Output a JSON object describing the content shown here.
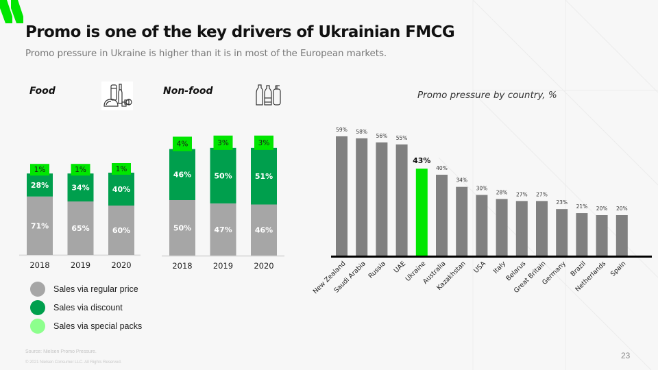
{
  "slide": {
    "title": "Promo is one of the key drivers of Ukrainian FMCG",
    "subtitle": "Promo pressure in Ukraine is higher than it is in most of the European markets.",
    "source": "Source: Nielsen Promo Pressure.",
    "copyright": "© 2021 Nielsen Consumer LLC. All Rights Reserved.",
    "page_number": "23",
    "colors": {
      "regular": "#a6a6a6",
      "discount": "#009f4d",
      "special": "#00e600",
      "country_bar": "#808080",
      "highlight": "#00e600",
      "logo": "#00e600"
    }
  },
  "legend": [
    {
      "label": "Sales via regular price",
      "color": "#a6a6a6"
    },
    {
      "label": "Sales via discount",
      "color": "#009f4d"
    },
    {
      "label": "Sales via special packs",
      "color": "#8dff8d"
    }
  ],
  "chart_data": [
    {
      "type": "bar",
      "stacked": true,
      "title": "Food",
      "icon": "groceries-icon",
      "categories": [
        "2018",
        "2019",
        "2020"
      ],
      "series": [
        {
          "name": "Sales via regular price",
          "values": [
            71,
            65,
            60
          ],
          "labels": [
            "71%",
            "65%",
            "60%"
          ]
        },
        {
          "name": "Sales via discount",
          "values": [
            28,
            34,
            40
          ],
          "labels": [
            "28%",
            "34%",
            "40%"
          ]
        },
        {
          "name": "Sales via special packs",
          "values": [
            1,
            1,
            1
          ],
          "labels": [
            "1%",
            "1%",
            "1%"
          ]
        }
      ],
      "xlabel": "",
      "ylabel": ""
    },
    {
      "type": "bar",
      "stacked": true,
      "title": "Non-food",
      "icon": "household-bottles-icon",
      "categories": [
        "2018",
        "2019",
        "2020"
      ],
      "series": [
        {
          "name": "Sales via regular price",
          "values": [
            50,
            47,
            46
          ],
          "labels": [
            "50%",
            "47%",
            "46%"
          ]
        },
        {
          "name": "Sales via discount",
          "values": [
            46,
            50,
            51
          ],
          "labels": [
            "46%",
            "50%",
            "51%"
          ]
        },
        {
          "name": "Sales via special packs",
          "values": [
            4,
            3,
            3
          ],
          "labels": [
            "4%",
            "3%",
            "3%"
          ]
        }
      ],
      "xlabel": "",
      "ylabel": ""
    },
    {
      "type": "bar",
      "title": "Promo pressure by country, %",
      "categories": [
        "New Zealand",
        "Saudi Arabia",
        "Russia",
        "UAE",
        "Ukraine",
        "Australia",
        "Kazakhstan",
        "USA",
        "Italy",
        "Belarus",
        "Great Britain",
        "Germany",
        "Brazil",
        "Netherlands",
        "Spain"
      ],
      "values": [
        59,
        58,
        56,
        55,
        43,
        40,
        34,
        30,
        28,
        27,
        27,
        23,
        21,
        20,
        20
      ],
      "labels": [
        "59%",
        "58%",
        "56%",
        "55%",
        "43%",
        "40%",
        "34%",
        "30%",
        "28%",
        "27%",
        "27%",
        "23%",
        "21%",
        "20%",
        "20%"
      ],
      "highlight": "Ukraine",
      "ylim": [
        0,
        60
      ],
      "grid": false,
      "xlabel": "",
      "ylabel": ""
    }
  ]
}
